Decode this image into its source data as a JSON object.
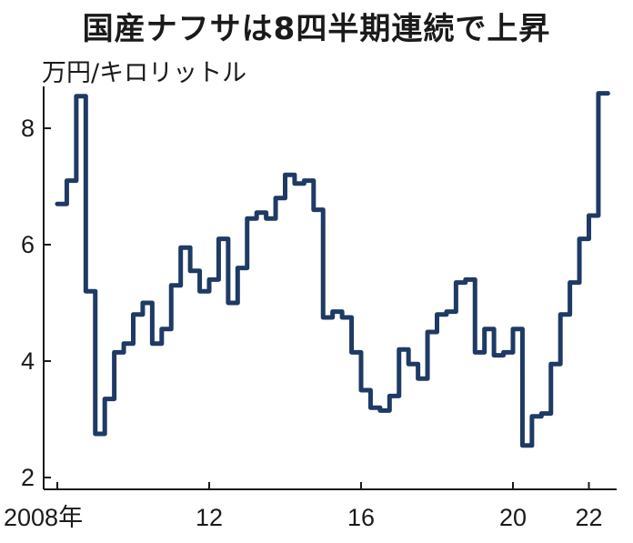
{
  "chart_data": {
    "type": "line",
    "title": "国産ナフサは8四半期連続で上昇",
    "ylabel": "万円/キロリットル",
    "xlabel": "",
    "ylim": [
      2,
      9
    ],
    "xlim": [
      2008,
      2023.5
    ],
    "grid": false,
    "legend": "none",
    "line_color": "#1f3a64",
    "y_ticks": [
      2,
      4,
      6,
      8
    ],
    "x_ticks": [
      {
        "value": 2008,
        "label": "2008年"
      },
      {
        "value": 2012,
        "label": "12"
      },
      {
        "value": 2016,
        "label": "16"
      },
      {
        "value": 2020,
        "label": "20"
      },
      {
        "value": 2022,
        "label": "22"
      }
    ],
    "series": [
      {
        "x": [
          2008.0,
          2008.25,
          2008.5,
          2008.75,
          2009.0,
          2009.25,
          2009.5,
          2009.75,
          2010.0,
          2010.25,
          2010.5,
          2010.75,
          2011.0,
          2011.25,
          2011.5,
          2011.75,
          2012.0,
          2012.25,
          2012.5,
          2012.75,
          2013.0,
          2013.25,
          2013.5,
          2013.75,
          2014.0,
          2014.25,
          2014.5,
          2014.75,
          2015.0,
          2015.25,
          2015.5,
          2015.75,
          2016.0,
          2016.25,
          2016.5,
          2016.75,
          2017.0,
          2017.25,
          2017.5,
          2017.75,
          2018.0,
          2018.25,
          2018.5,
          2018.75,
          2019.0,
          2019.25,
          2019.5,
          2019.75,
          2020.0,
          2020.25,
          2020.5,
          2020.75,
          2021.0,
          2021.25,
          2021.5,
          2021.75,
          2022.0,
          2022.25
        ],
        "values": [
          6.7,
          7.1,
          8.55,
          5.2,
          2.75,
          3.35,
          4.15,
          4.3,
          4.8,
          5.0,
          4.3,
          4.55,
          5.3,
          5.95,
          5.55,
          5.2,
          5.4,
          6.1,
          5.0,
          5.6,
          6.45,
          6.55,
          6.45,
          6.8,
          7.2,
          7.05,
          7.1,
          6.6,
          4.75,
          4.85,
          4.75,
          4.15,
          3.5,
          3.2,
          3.15,
          3.4,
          4.2,
          3.95,
          3.7,
          4.5,
          4.8,
          4.85,
          5.35,
          5.4,
          4.15,
          4.55,
          4.1,
          4.15,
          4.55,
          2.55,
          3.05,
          3.1,
          3.95,
          4.8,
          5.35,
          6.1,
          6.5,
          8.6
        ]
      }
    ]
  }
}
